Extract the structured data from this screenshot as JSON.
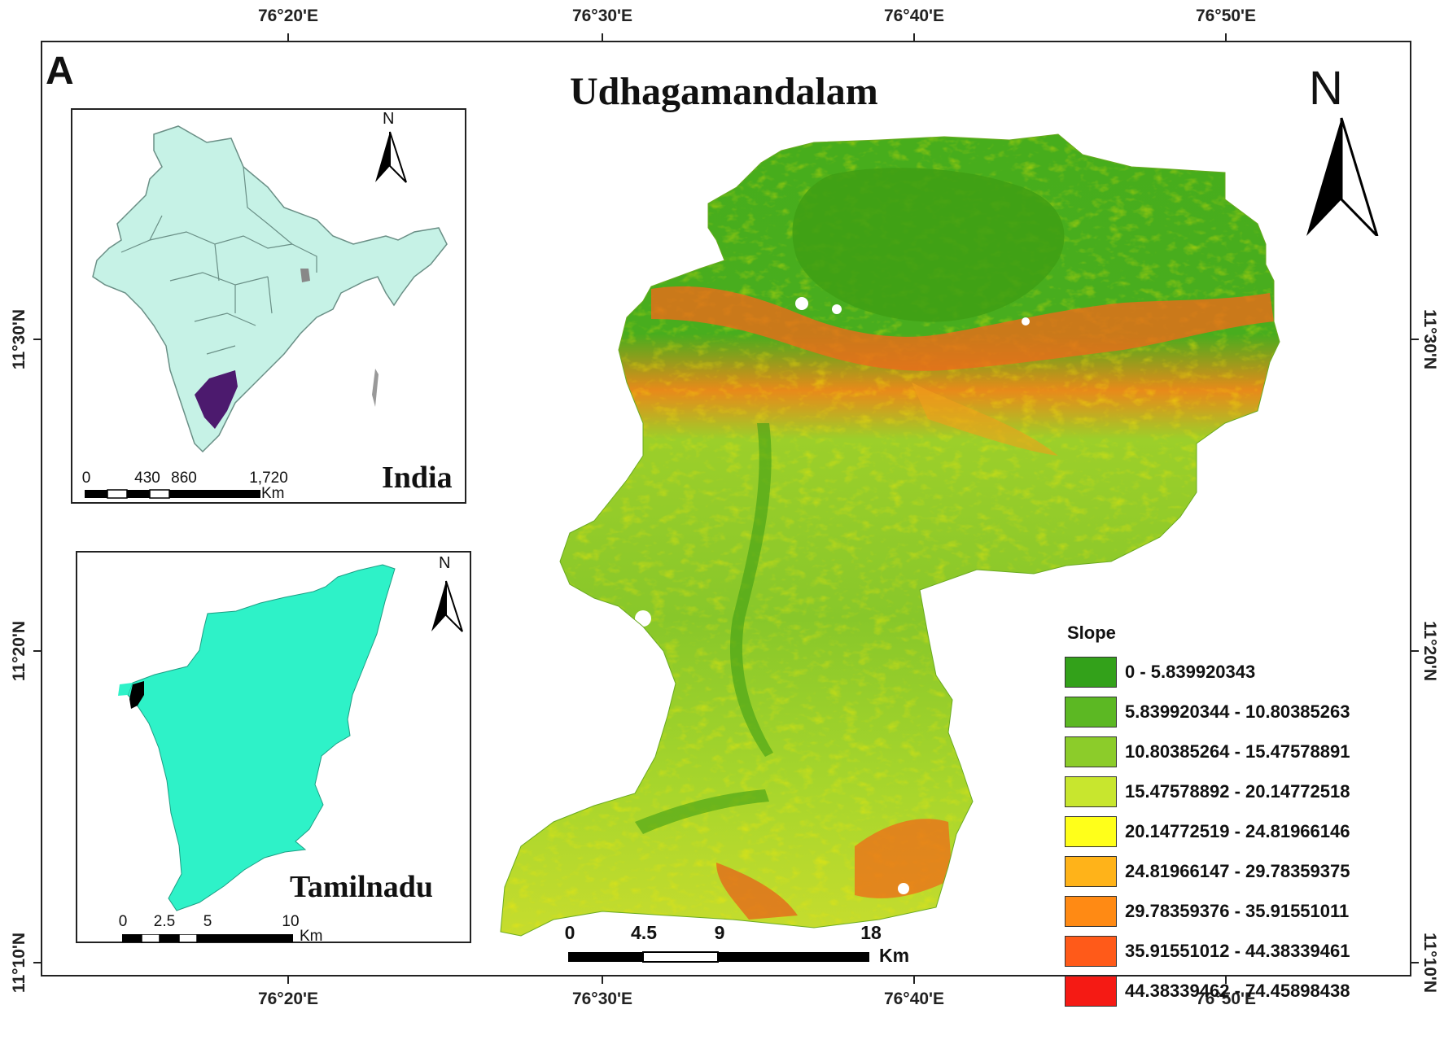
{
  "panel_label": "A",
  "title": "Udhagamandalam",
  "north_label": "N",
  "longitude_labels": [
    "76°20'E",
    "76°30'E",
    "76°40'E",
    "76°50'E"
  ],
  "latitude_labels": [
    "11°30'N",
    "11°20'N",
    "11°10'N"
  ],
  "inset_india": {
    "name": "India",
    "north": "N",
    "scale_ticks": [
      "0",
      "430",
      "860",
      "1,720"
    ],
    "scale_unit": "Km"
  },
  "inset_tamilnadu": {
    "name": "Tamilnadu",
    "north": "N",
    "scale_ticks": [
      "0",
      "2.5",
      "5",
      "10"
    ],
    "scale_unit": "Km"
  },
  "main_scale": {
    "ticks": [
      "0",
      "4.5",
      "9",
      "18"
    ],
    "unit": "Km"
  },
  "legend": {
    "title": "Slope",
    "classes": [
      {
        "label": "0 - 5.839920343",
        "color": "#33a11a"
      },
      {
        "label": "5.839920344 - 10.80385263",
        "color": "#5cb823"
      },
      {
        "label": "10.80385264 - 15.47578891",
        "color": "#8ccc2a"
      },
      {
        "label": "15.47578892 - 20.14772518",
        "color": "#c8e62e"
      },
      {
        "label": "20.14772519 - 24.81966146",
        "color": "#ffff1a"
      },
      {
        "label": "24.81966147 - 29.78359375",
        "color": "#ffb319"
      },
      {
        "label": "29.78359376 - 35.91551011",
        "color": "#ff8a14"
      },
      {
        "label": "35.91551012 - 44.38339461",
        "color": "#ff5a19"
      },
      {
        "label": "44.38339462 - 74.45898438",
        "color": "#f51a14"
      }
    ]
  },
  "colors": {
    "india_fill": "#c6f2e6",
    "tamilnadu_highlight": "#4c1a6e",
    "tamilnadu_fill": "#2ef2c8",
    "study_area_highlight": "#000000"
  }
}
